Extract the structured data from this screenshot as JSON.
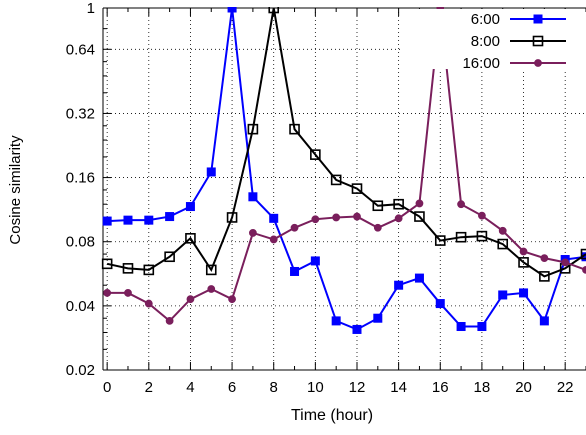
{
  "chart_data": {
    "type": "line",
    "xlabel": "Time (hour)",
    "ylabel": "Cosine similarity",
    "x_ticks": [
      0,
      2,
      4,
      6,
      8,
      10,
      12,
      14,
      16,
      18,
      20,
      22
    ],
    "y_ticks": [
      {
        "value": 0.02,
        "label": "0.02"
      },
      {
        "value": 0.04,
        "label": "0.04"
      },
      {
        "value": 0.08,
        "label": "0.08"
      },
      {
        "value": 0.16,
        "label": "0.16"
      },
      {
        "value": 0.32,
        "label": "0.32"
      },
      {
        "value": 0.64,
        "label": "0.64"
      },
      {
        "value": 1,
        "label": "1"
      }
    ],
    "y_scale": "log",
    "xlim": [
      -0.2,
      23.0
    ],
    "ylim": [
      0.02,
      1
    ],
    "grid": true,
    "legend_position": "top-right",
    "x": [
      0,
      1,
      2,
      3,
      4,
      5,
      6,
      7,
      8,
      9,
      10,
      11,
      12,
      13,
      14,
      15,
      16,
      17,
      18,
      19,
      20,
      21,
      22,
      23
    ],
    "series": [
      {
        "name": "6:00",
        "color": "#0000ff",
        "marker": "filled-square",
        "values": [
          0.1,
          0.101,
          0.101,
          0.105,
          0.117,
          0.17,
          1,
          0.13,
          0.103,
          0.058,
          0.065,
          0.034,
          0.031,
          0.035,
          0.05,
          0.054,
          0.041,
          0.032,
          0.032,
          0.045,
          0.046,
          0.034,
          0.066,
          0.068
        ]
      },
      {
        "name": "8:00",
        "color": "#000000",
        "marker": "open-square",
        "values": [
          0.063,
          0.06,
          0.059,
          0.068,
          0.083,
          0.059,
          0.104,
          0.27,
          1,
          0.27,
          0.205,
          0.156,
          0.142,
          0.118,
          0.12,
          0.105,
          0.081,
          0.084,
          0.085,
          0.078,
          0.064,
          0.055,
          0.06,
          0.07
        ]
      },
      {
        "name": "16:00",
        "color": "#7a1f5c",
        "marker": "filled-circle",
        "values": [
          0.046,
          0.046,
          0.041,
          0.034,
          0.043,
          0.048,
          0.043,
          0.088,
          0.082,
          0.093,
          0.102,
          0.104,
          0.105,
          0.093,
          0.103,
          0.121,
          1,
          0.12,
          0.106,
          0.09,
          0.072,
          0.067,
          0.064,
          0.059
        ]
      }
    ]
  }
}
